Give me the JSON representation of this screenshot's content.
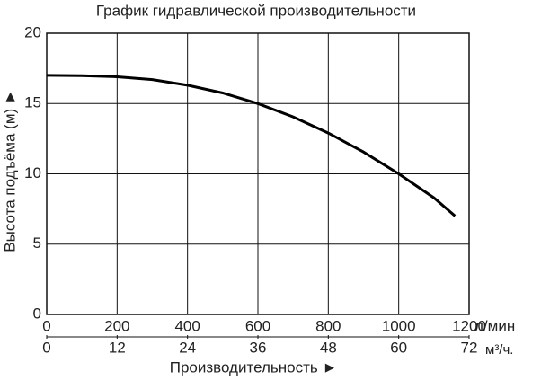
{
  "chart_data": {
    "type": "line",
    "title": "График гидравлической производительности",
    "y_label": "Высота подъёма (м) ►",
    "x_label": "Производительность ►",
    "x_unit": "л/мин",
    "x2_unit": "м³/ч.",
    "x": [
      0,
      100,
      200,
      300,
      400,
      500,
      600,
      700,
      800,
      900,
      1000,
      1100,
      1160
    ],
    "values": [
      17,
      16.98,
      16.9,
      16.7,
      16.3,
      15.75,
      15,
      14.05,
      12.9,
      11.55,
      10,
      8.3,
      7
    ],
    "color": "#000000",
    "xlim": [
      0,
      1200
    ],
    "xticks": [
      0,
      200,
      400,
      600,
      800,
      1000,
      1200
    ],
    "x2lim": [
      0,
      72
    ],
    "x2ticks": [
      0,
      12,
      24,
      36,
      48,
      60,
      72
    ],
    "ylim": [
      0,
      20
    ],
    "yticks": [
      0,
      5,
      10,
      15,
      20
    ],
    "grid": true
  }
}
